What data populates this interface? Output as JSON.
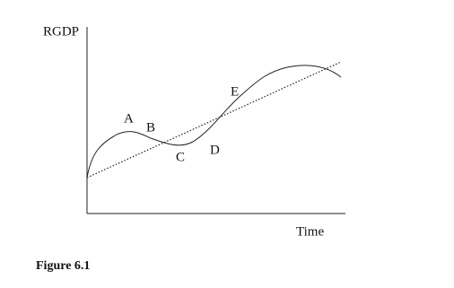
{
  "axes": {
    "y_label": "RGDP",
    "x_label": "Time"
  },
  "points": [
    {
      "label": "A"
    },
    {
      "label": "B"
    },
    {
      "label": "C"
    },
    {
      "label": "D"
    },
    {
      "label": "E"
    }
  ],
  "caption": "Figure 6.1"
}
